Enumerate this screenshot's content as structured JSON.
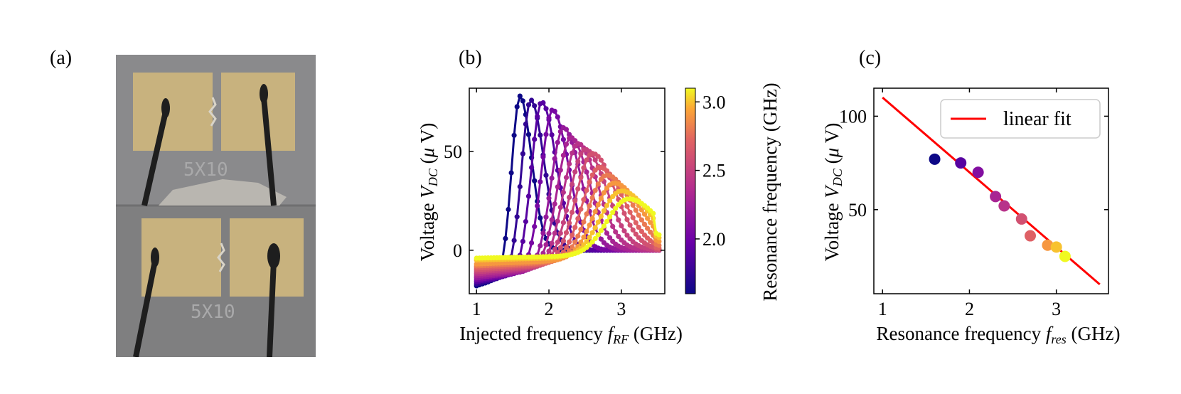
{
  "panels": {
    "a": {
      "label": "(a)",
      "photo_text_top": "5X10",
      "photo_text_bottom": "5X10"
    },
    "b": {
      "label": "(b)"
    },
    "c": {
      "label": "(c)"
    }
  },
  "chart_data": [
    {
      "type": "line",
      "panel": "b",
      "xlabel": "Injected frequency f_RF (GHz)",
      "ylabel": "Voltage V_DC (μ V)",
      "xlim": [
        0.9,
        3.6
      ],
      "ylim": [
        -22,
        82
      ],
      "xticks": [
        1,
        2,
        3
      ],
      "yticks": [
        0,
        50
      ],
      "colorbar": {
        "label": "Resonance frequency (GHz)",
        "range": [
          1.6,
          3.1
        ],
        "ticks": [
          2.0,
          2.5,
          3.0
        ],
        "colormap": "plasma"
      },
      "series": [
        {
          "resonance": 1.6,
          "peak": 78,
          "offset": -18
        },
        {
          "resonance": 1.75,
          "peak": 76,
          "offset": -17
        },
        {
          "resonance": 1.9,
          "peak": 75,
          "offset": -16
        },
        {
          "resonance": 2.05,
          "peak": 71,
          "offset": -15
        },
        {
          "resonance": 2.2,
          "peak": 62,
          "offset": -14
        },
        {
          "resonance": 2.3,
          "peak": 57,
          "offset": -13
        },
        {
          "resonance": 2.4,
          "peak": 54,
          "offset": -12
        },
        {
          "resonance": 2.5,
          "peak": 51,
          "offset": -11
        },
        {
          "resonance": 2.6,
          "peak": 49,
          "offset": -10
        },
        {
          "resonance": 2.7,
          "peak": 42,
          "offset": -9
        },
        {
          "resonance": 2.8,
          "peak": 38,
          "offset": -8
        },
        {
          "resonance": 2.9,
          "peak": 34,
          "offset": -7
        },
        {
          "resonance": 3.0,
          "peak": 30,
          "offset": -5
        },
        {
          "resonance": 3.1,
          "peak": 26,
          "offset": -4
        }
      ]
    },
    {
      "type": "scatter",
      "panel": "c",
      "xlabel": "Resonance frequency f_res (GHz)",
      "ylabel": "Voltage V_DC (μ V)",
      "xlim": [
        0.9,
        3.6
      ],
      "ylim": [
        5,
        115
      ],
      "xticks": [
        1,
        2,
        3
      ],
      "yticks": [
        50,
        100
      ],
      "legend": {
        "label": "linear fit",
        "position": "top-right"
      },
      "points": [
        {
          "x": 1.6,
          "y": 77
        },
        {
          "x": 1.9,
          "y": 75
        },
        {
          "x": 2.1,
          "y": 70
        },
        {
          "x": 2.3,
          "y": 57
        },
        {
          "x": 2.4,
          "y": 52
        },
        {
          "x": 2.6,
          "y": 45
        },
        {
          "x": 2.7,
          "y": 36
        },
        {
          "x": 2.9,
          "y": 31
        },
        {
          "x": 3.0,
          "y": 30
        },
        {
          "x": 3.1,
          "y": 25
        }
      ],
      "fit": {
        "x": [
          1.0,
          3.5
        ],
        "y": [
          110,
          10
        ],
        "color": "#ff0000"
      }
    }
  ]
}
